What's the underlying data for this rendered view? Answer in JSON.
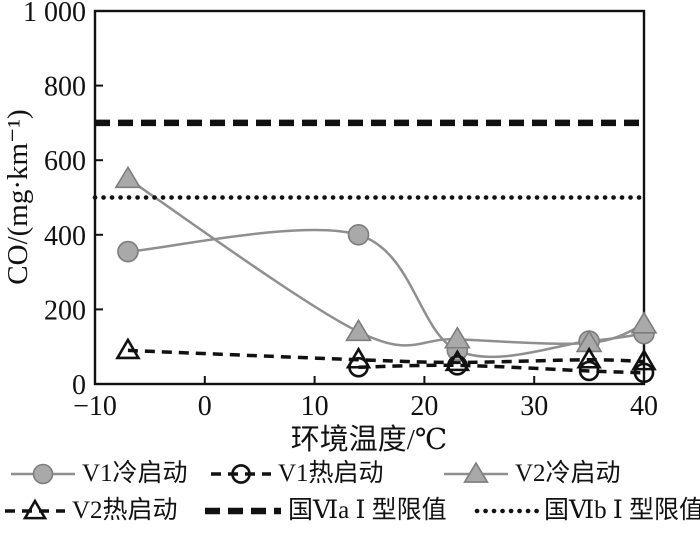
{
  "chart_data": {
    "type": "line",
    "title": "",
    "xlabel": "环境温度/℃",
    "ylabel": "CO/(mg·km⁻¹)",
    "xlim": [
      -10,
      40
    ],
    "ylim": [
      0,
      1000
    ],
    "grid": false,
    "legend_position": "bottom",
    "xticks": {
      "values": [
        -10,
        0,
        10,
        20,
        30,
        40
      ],
      "labels": [
        "−10",
        "0",
        "10",
        "20",
        "30",
        "40"
      ]
    },
    "yticks": {
      "values": [
        0,
        200,
        400,
        600,
        800,
        1000
      ],
      "labels": [
        "0",
        "200",
        "400",
        "600",
        "800",
        "1 000"
      ]
    },
    "series": [
      {
        "id": "v1_cold",
        "name": "V1冷启动",
        "style": "solid-gray",
        "marker": "filled-circle",
        "x": [
          -7,
          14,
          23,
          35,
          40
        ],
        "y": [
          355,
          400,
          90,
          115,
          135
        ]
      },
      {
        "id": "v1_hot",
        "name": "V1热启动",
        "style": "dashed-black",
        "marker": "open-circle",
        "x": [
          14,
          23,
          35,
          40
        ],
        "y": [
          45,
          50,
          35,
          30
        ]
      },
      {
        "id": "v2_cold",
        "name": "V2冷启动",
        "style": "solid-gray",
        "marker": "filled-triangle",
        "x": [
          -7,
          14,
          23,
          35,
          40
        ],
        "y": [
          550,
          140,
          120,
          110,
          160
        ]
      },
      {
        "id": "v2_hot",
        "name": "V2热启动",
        "style": "dashed-black",
        "marker": "open-triangle",
        "x": [
          -7,
          14,
          23,
          35,
          40
        ],
        "y": [
          90,
          65,
          58,
          65,
          60
        ]
      },
      {
        "id": "limit_via",
        "name": "国Ⅵa Ⅰ 型限值",
        "style": "thick-dashed-black",
        "marker": "none",
        "limit": 700
      },
      {
        "id": "limit_vib",
        "name": "国Ⅵb Ⅰ 型限值",
        "style": "dotted-black",
        "marker": "none",
        "limit": 500
      }
    ],
    "colors": {
      "gray_line": "#8f8f8f",
      "gray_marker_fill": "#a9a9a9",
      "gray_marker_edge": "#7d7d7d",
      "black": "#111111",
      "background": "#ffffff"
    },
    "legend_rows": [
      [
        0,
        1,
        2
      ],
      [
        3,
        4,
        5
      ]
    ]
  }
}
